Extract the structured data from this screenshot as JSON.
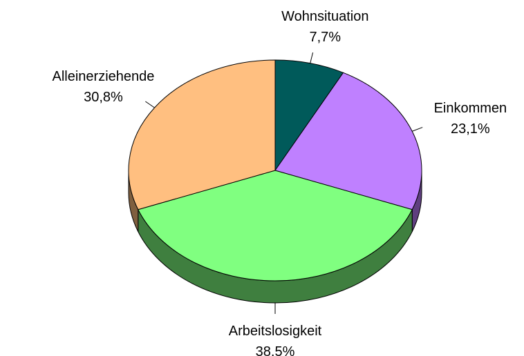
{
  "chart_data": {
    "type": "pie3d",
    "categories": [
      "Wohnsituation",
      "Einkommen",
      "Arbeitslosigkeit",
      "Alleinerziehende"
    ],
    "values": [
      7.7,
      23.1,
      38.5,
      30.8
    ],
    "value_labels": [
      "7,7%",
      "23,1%",
      "38,5%",
      "30,8%"
    ],
    "colors": [
      "#005a5a",
      "#bf80ff",
      "#80ff80",
      "#ffbf80"
    ],
    "side_colors": [
      "#003030",
      "#5f3f7f",
      "#3f7f3f",
      "#7f5f3f"
    ]
  }
}
